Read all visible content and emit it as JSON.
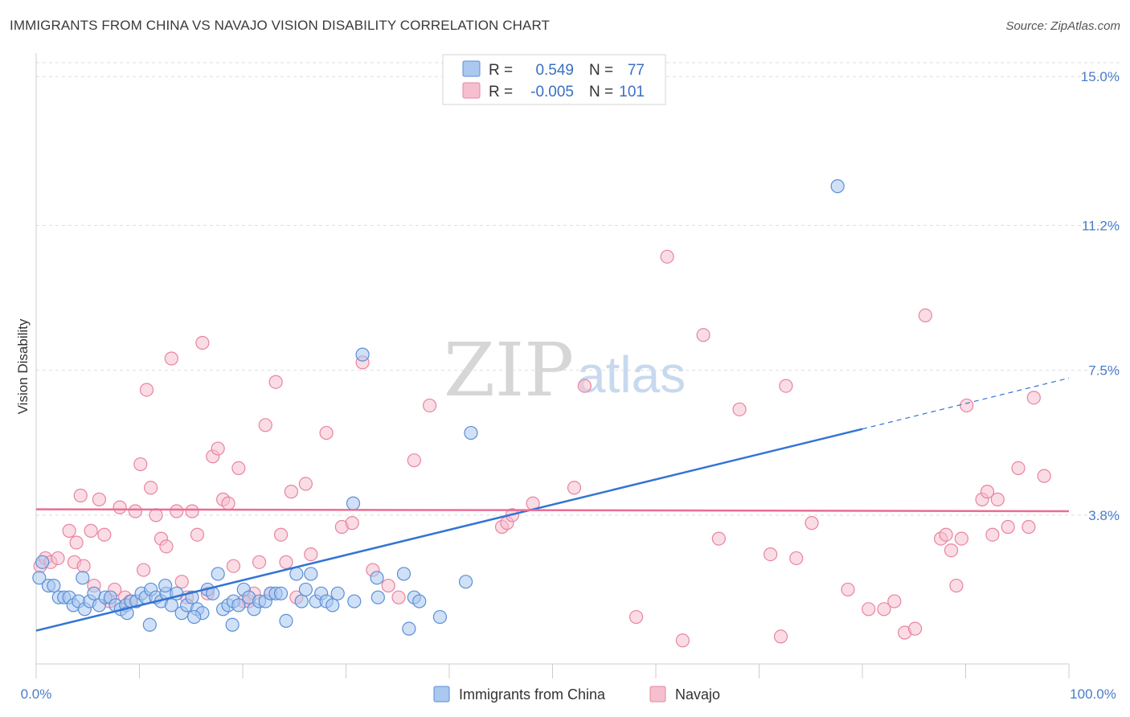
{
  "title": "IMMIGRANTS FROM CHINA VS NAVAJO VISION DISABILITY CORRELATION CHART",
  "source": "Source: ZipAtlas.com",
  "watermark": {
    "zip": "ZIP",
    "atlas": "atlas"
  },
  "colors": {
    "blue_fill": "#aac8f0",
    "blue_stroke": "#5b8ed6",
    "blue_line": "#3374d4",
    "pink_fill": "#f6bfd0",
    "pink_stroke": "#e8849f",
    "pink_line": "#ea6d93",
    "grid": "#dddddd",
    "tick_text": "#4a7cc9"
  },
  "legend": {
    "rows": [
      {
        "r_label": "R =",
        "r_value": "0.549",
        "n_label": "N =",
        "n_value": "77"
      },
      {
        "r_label": "R =",
        "r_value": "-0.005",
        "n_label": "N =",
        "n_value": "101"
      }
    ]
  },
  "chart_data": {
    "type": "scatter",
    "title": "IMMIGRANTS FROM CHINA VS NAVAJO VISION DISABILITY CORRELATION CHART",
    "xlabel": "",
    "ylabel": "Vision Disability",
    "xlim": [
      0,
      100
    ],
    "ylim": [
      0,
      15.6
    ],
    "x_tick_labels": [
      "0.0%",
      "100.0%"
    ],
    "y_ticks": [
      {
        "value": 3.8,
        "label": "3.8%"
      },
      {
        "value": 7.5,
        "label": "7.5%"
      },
      {
        "value": 11.2,
        "label": "11.2%"
      },
      {
        "value": 15.0,
        "label": "15.0%"
      }
    ],
    "series": [
      {
        "name": "Immigrants from China",
        "color": "#aac8f0",
        "trend": {
          "x0": 0,
          "y0": 0.85,
          "x1": 80,
          "y1": 6.0,
          "dash_to_x": 100,
          "dash_to_y": 7.3
        },
        "points": [
          [
            0.3,
            2.2
          ],
          [
            0.6,
            2.6
          ],
          [
            1.2,
            2.0
          ],
          [
            1.7,
            2.0
          ],
          [
            2.2,
            1.7
          ],
          [
            2.7,
            1.7
          ],
          [
            3.2,
            1.7
          ],
          [
            3.6,
            1.5
          ],
          [
            4.1,
            1.6
          ],
          [
            4.7,
            1.4
          ],
          [
            5.2,
            1.6
          ],
          [
            5.6,
            1.8
          ],
          [
            6.1,
            1.5
          ],
          [
            6.7,
            1.7
          ],
          [
            7.2,
            1.7
          ],
          [
            7.7,
            1.5
          ],
          [
            8.2,
            1.4
          ],
          [
            8.7,
            1.5
          ],
          [
            9.2,
            1.6
          ],
          [
            9.7,
            1.6
          ],
          [
            10.2,
            1.8
          ],
          [
            10.6,
            1.7
          ],
          [
            11.1,
            1.9
          ],
          [
            11.6,
            1.7
          ],
          [
            12.1,
            1.6
          ],
          [
            12.6,
            1.8
          ],
          [
            13.1,
            1.5
          ],
          [
            13.6,
            1.8
          ],
          [
            14.1,
            1.3
          ],
          [
            14.6,
            1.5
          ],
          [
            15.1,
            1.7
          ],
          [
            15.6,
            1.4
          ],
          [
            16.1,
            1.3
          ],
          [
            16.6,
            1.9
          ],
          [
            17.1,
            1.8
          ],
          [
            17.6,
            2.3
          ],
          [
            18.1,
            1.4
          ],
          [
            18.6,
            1.5
          ],
          [
            19.1,
            1.6
          ],
          [
            19.6,
            1.5
          ],
          [
            20.1,
            1.9
          ],
          [
            20.6,
            1.7
          ],
          [
            21.1,
            1.4
          ],
          [
            21.6,
            1.6
          ],
          [
            22.2,
            1.6
          ],
          [
            22.7,
            1.8
          ],
          [
            23.2,
            1.8
          ],
          [
            23.7,
            1.8
          ],
          [
            25.2,
            2.3
          ],
          [
            25.7,
            1.6
          ],
          [
            26.1,
            1.9
          ],
          [
            26.6,
            2.3
          ],
          [
            27.1,
            1.6
          ],
          [
            27.6,
            1.8
          ],
          [
            28.1,
            1.6
          ],
          [
            28.7,
            1.5
          ],
          [
            29.2,
            1.8
          ],
          [
            30.7,
            4.1
          ],
          [
            31.6,
            7.9
          ],
          [
            33.1,
            1.7
          ],
          [
            35.6,
            2.3
          ],
          [
            36.1,
            0.9
          ],
          [
            36.6,
            1.7
          ],
          [
            39.1,
            1.2
          ],
          [
            41.6,
            2.1
          ],
          [
            42.1,
            5.9
          ],
          [
            4.5,
            2.2
          ],
          [
            8.8,
            1.3
          ],
          [
            11.0,
            1.0
          ],
          [
            12.5,
            2.0
          ],
          [
            15.3,
            1.2
          ],
          [
            19.0,
            1.0
          ],
          [
            24.2,
            1.1
          ],
          [
            30.8,
            1.6
          ],
          [
            33.0,
            2.2
          ],
          [
            37.1,
            1.6
          ],
          [
            77.6,
            12.2
          ]
        ]
      },
      {
        "name": "Navajo",
        "color": "#f6bfd0",
        "trend": {
          "x0": 0,
          "y0": 3.95,
          "x1": 100,
          "y1": 3.9
        },
        "points": [
          [
            0.4,
            2.5
          ],
          [
            0.9,
            2.7
          ],
          [
            1.4,
            2.6
          ],
          [
            2.1,
            2.7
          ],
          [
            3.2,
            3.4
          ],
          [
            3.7,
            2.6
          ],
          [
            3.9,
            3.1
          ],
          [
            4.3,
            4.3
          ],
          [
            4.6,
            2.5
          ],
          [
            5.3,
            3.4
          ],
          [
            5.6,
            2.0
          ],
          [
            6.1,
            4.2
          ],
          [
            6.6,
            3.3
          ],
          [
            7.1,
            1.6
          ],
          [
            7.6,
            1.9
          ],
          [
            8.1,
            4.0
          ],
          [
            8.6,
            1.7
          ],
          [
            9.1,
            1.6
          ],
          [
            9.6,
            3.9
          ],
          [
            10.1,
            5.1
          ],
          [
            10.4,
            2.4
          ],
          [
            10.7,
            7.0
          ],
          [
            11.1,
            4.5
          ],
          [
            11.6,
            3.8
          ],
          [
            12.1,
            3.2
          ],
          [
            12.6,
            3.0
          ],
          [
            13.1,
            7.8
          ],
          [
            13.6,
            3.9
          ],
          [
            14.1,
            2.1
          ],
          [
            14.6,
            1.7
          ],
          [
            15.1,
            3.9
          ],
          [
            15.6,
            3.3
          ],
          [
            16.1,
            8.2
          ],
          [
            16.6,
            1.8
          ],
          [
            17.1,
            5.3
          ],
          [
            17.6,
            5.5
          ],
          [
            18.1,
            4.2
          ],
          [
            18.6,
            4.1
          ],
          [
            19.1,
            2.5
          ],
          [
            19.6,
            5.0
          ],
          [
            20.1,
            1.6
          ],
          [
            20.6,
            1.6
          ],
          [
            21.1,
            1.8
          ],
          [
            21.6,
            2.6
          ],
          [
            22.2,
            6.1
          ],
          [
            22.7,
            1.8
          ],
          [
            23.2,
            7.2
          ],
          [
            23.7,
            3.3
          ],
          [
            24.2,
            2.6
          ],
          [
            24.7,
            4.4
          ],
          [
            25.2,
            1.7
          ],
          [
            26.1,
            4.6
          ],
          [
            26.6,
            2.8
          ],
          [
            28.1,
            5.9
          ],
          [
            29.6,
            3.5
          ],
          [
            30.6,
            3.6
          ],
          [
            31.6,
            7.7
          ],
          [
            32.6,
            2.4
          ],
          [
            34.1,
            2.0
          ],
          [
            35.1,
            1.7
          ],
          [
            36.6,
            5.2
          ],
          [
            38.1,
            6.6
          ],
          [
            45.1,
            3.5
          ],
          [
            45.6,
            3.6
          ],
          [
            46.1,
            3.8
          ],
          [
            48.1,
            4.1
          ],
          [
            52.1,
            4.5
          ],
          [
            53.1,
            7.1
          ],
          [
            58.1,
            1.2
          ],
          [
            61.1,
            10.4
          ],
          [
            62.6,
            0.6
          ],
          [
            64.6,
            8.4
          ],
          [
            66.1,
            3.2
          ],
          [
            68.1,
            6.5
          ],
          [
            71.1,
            2.8
          ],
          [
            72.1,
            0.7
          ],
          [
            72.6,
            7.1
          ],
          [
            73.6,
            2.7
          ],
          [
            75.1,
            3.6
          ],
          [
            78.6,
            1.9
          ],
          [
            80.6,
            1.4
          ],
          [
            82.1,
            1.4
          ],
          [
            83.1,
            1.6
          ],
          [
            84.1,
            0.8
          ],
          [
            85.1,
            0.9
          ],
          [
            86.1,
            8.9
          ],
          [
            87.6,
            3.2
          ],
          [
            88.1,
            3.3
          ],
          [
            88.6,
            2.9
          ],
          [
            89.1,
            2.0
          ],
          [
            89.6,
            3.2
          ],
          [
            90.1,
            6.6
          ],
          [
            91.6,
            4.2
          ],
          [
            92.1,
            4.4
          ],
          [
            92.6,
            3.3
          ],
          [
            93.1,
            4.2
          ],
          [
            94.1,
            3.5
          ],
          [
            95.1,
            5.0
          ],
          [
            96.1,
            3.5
          ],
          [
            96.6,
            6.8
          ],
          [
            97.6,
            4.8
          ]
        ]
      }
    ]
  },
  "bottom_legend": [
    {
      "label": "Immigrants from China"
    },
    {
      "label": "Navajo"
    }
  ]
}
